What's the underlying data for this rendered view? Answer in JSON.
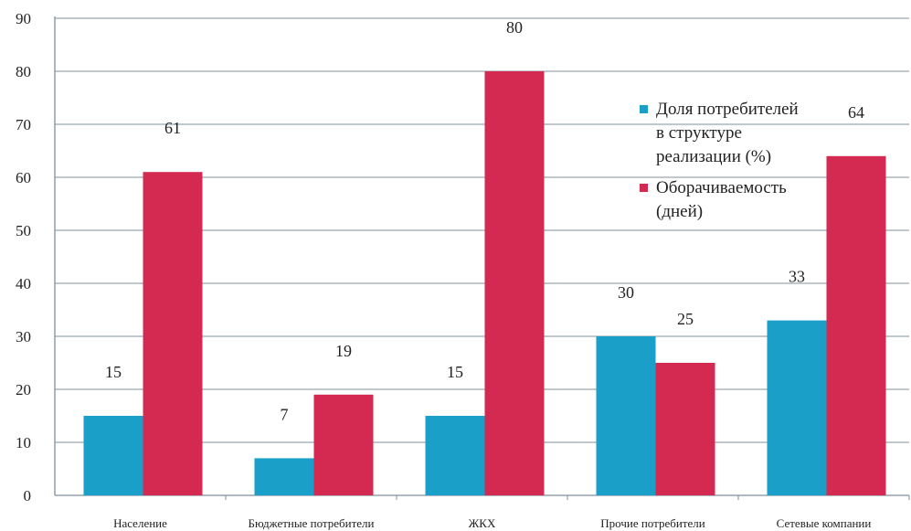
{
  "chart_data": {
    "type": "bar",
    "categories": [
      "Население",
      "Бюджетные потребители",
      "ЖКХ",
      "Прочие потребители",
      "Сетевые компании"
    ],
    "series": [
      {
        "name": "Доля потребителей в структуре реализации (%)",
        "legend_lines": [
          "Доля потребителей",
          "в структуре",
          "реализации (%)"
        ],
        "color": "#1aa0c8",
        "values": [
          15,
          7,
          15,
          30,
          33
        ]
      },
      {
        "name": "Оборачиваемость (дней)",
        "legend_lines": [
          "Оборачиваемость",
          "(дней)"
        ],
        "color": "#d42a52",
        "values": [
          61,
          19,
          80,
          25,
          64
        ]
      }
    ],
    "ylim": [
      0,
      90
    ],
    "yticks": [
      0,
      10,
      20,
      30,
      40,
      50,
      60,
      70,
      80,
      90
    ],
    "grid": true,
    "legend_position": "top-right",
    "title": "",
    "xlabel": "",
    "ylabel": ""
  }
}
